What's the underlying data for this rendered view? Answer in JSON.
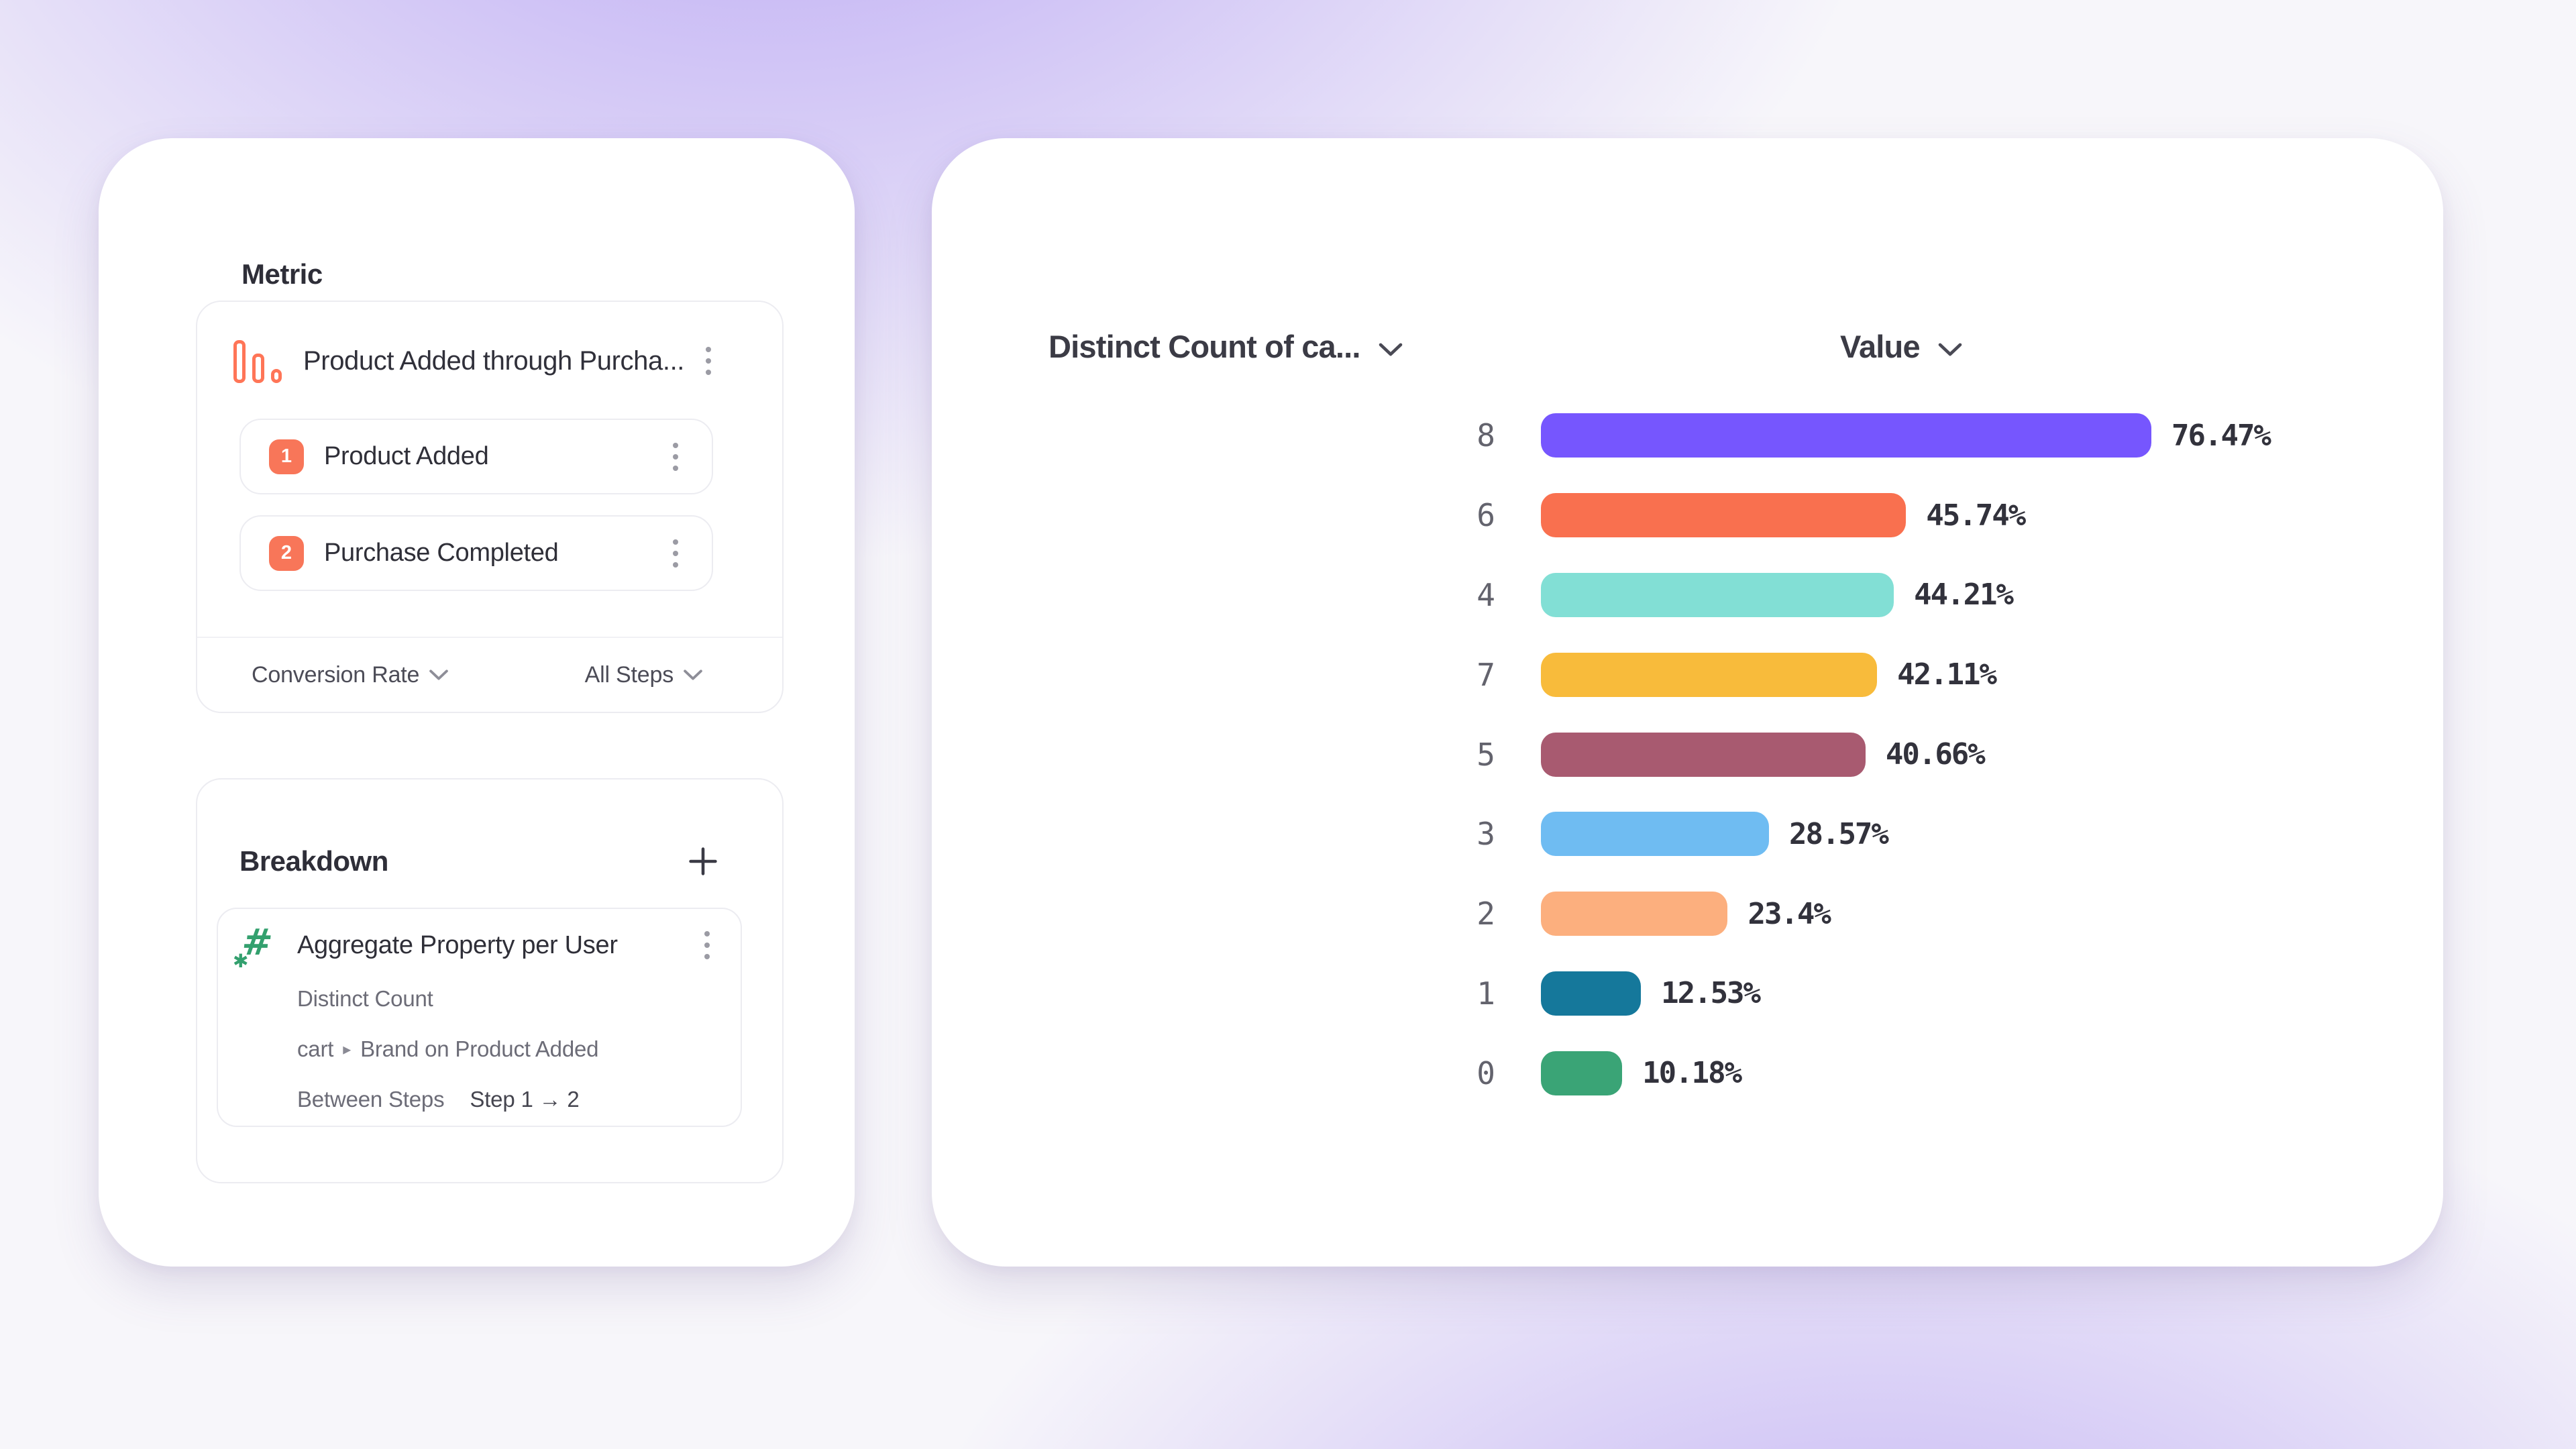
{
  "accent_color": "#7c56eb",
  "metric_section": {
    "heading": "Metric",
    "funnel": {
      "title": "Product Added through Purcha...",
      "icon": "funnel-bars-icon",
      "icon_color": "#FF7557",
      "steps": [
        {
          "number": "1",
          "label": "Product Added"
        },
        {
          "number": "2",
          "label": "Purchase Completed"
        }
      ],
      "step_chip_color": "#F87659",
      "footer": {
        "measure_label": "Conversion Rate",
        "scope_label": "All Steps"
      }
    }
  },
  "breakdown_section": {
    "heading": "Breakdown",
    "add_icon": "plus-icon",
    "property": {
      "icon": "numeric-property-icon",
      "icon_color": "#33A06E",
      "title": "Aggregate Property per User",
      "aggregation": "Distinct Count",
      "path_prefix": "cart",
      "path_separator": "▸",
      "path_suffix": "Brand on Product Added",
      "between_label": "Between Steps",
      "between_value": "Step 1 → 2"
    }
  },
  "chart_headers": {
    "left": "Distinct Count of ca...",
    "right": "Value"
  },
  "chart_data": {
    "type": "bar",
    "orientation": "horizontal",
    "title": "",
    "xlabel": "Value",
    "ylabel": "Distinct Count of ca...",
    "xlim": [
      0,
      100
    ],
    "grid": false,
    "categories": [
      "8",
      "6",
      "4",
      "7",
      "5",
      "3",
      "2",
      "1",
      "0"
    ],
    "values": [
      76.47,
      45.74,
      44.21,
      42.11,
      40.66,
      28.57,
      23.4,
      12.53,
      10.18
    ],
    "labels": [
      "76.47%",
      "45.74%",
      "44.21%",
      "42.11%",
      "40.66%",
      "28.57%",
      "23.4%",
      "12.53%",
      "10.18%"
    ],
    "colors": [
      "#7656FE",
      "#F9704F",
      "#82DFD5",
      "#F8BB3B",
      "#A85A70",
      "#6FBCF2",
      "#FCAF7E",
      "#15789B",
      "#3AA476"
    ]
  }
}
